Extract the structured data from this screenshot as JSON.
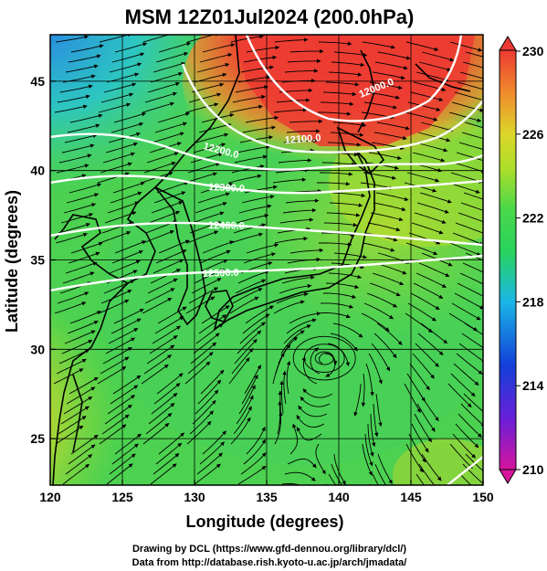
{
  "title": "MSM 12Z01Jul2024 (200.0hPa)",
  "x_axis": {
    "label": "Longitude (degrees)",
    "ticks": [
      "120",
      "125",
      "130",
      "135",
      "140",
      "145",
      "150"
    ],
    "range": [
      120,
      150
    ]
  },
  "y_axis": {
    "label": "Latitude  (degrees)",
    "ticks": [
      "25",
      "30",
      "35",
      "40",
      "45"
    ],
    "range": [
      22.4,
      47.6
    ]
  },
  "colorbar": {
    "ticks": [
      "230",
      "226",
      "222",
      "218",
      "214",
      "210"
    ],
    "range": [
      210,
      230
    ],
    "colors": [
      "#d6149c",
      "#6a1fd8",
      "#1240d8",
      "#1ab6e6",
      "#28d35e",
      "#82de2a",
      "#dcd62a",
      "#f08a2c",
      "#ec3a32"
    ]
  },
  "contour_labels": [
    "12000.0",
    "12100.0",
    "12200.0",
    "12300.0",
    "12400.0",
    "12500.0"
  ],
  "footer": {
    "line1": "Drawing by DCL (https://www.gfd-dennou.org/library/dcl/)",
    "line2": "Data from http://database.rish.kyoto-u.ac.jp/arch/jmadata/"
  },
  "colors": {
    "warm_high": "#e8402e",
    "cold_corner": "#2fb8e0",
    "background_field": "#52d24a",
    "contour": "#ffffff",
    "coast_and_vectors": "#000000"
  }
}
